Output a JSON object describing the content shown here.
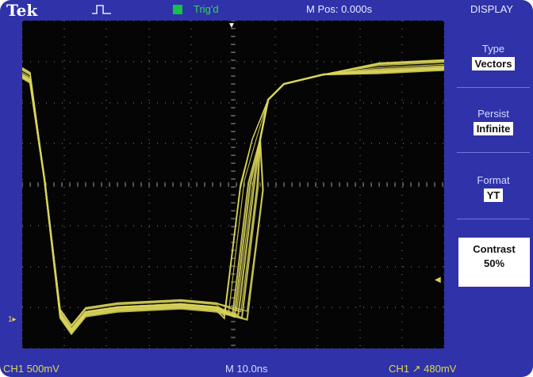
{
  "header": {
    "brand": "Tek",
    "trigger_status": "Trig'd",
    "m_pos": "M Pos: 0.000s"
  },
  "footer": {
    "ch1_scale": "CH1  500mV",
    "timebase": "M 10.0ns",
    "trigger": "CH1 ↗ 480mV"
  },
  "menu": {
    "title": "DISPLAY",
    "items": [
      {
        "label": "Type",
        "value": "Vectors"
      },
      {
        "label": "Persist",
        "value": "Infinite"
      },
      {
        "label": "Format",
        "value": "YT"
      },
      {
        "label": "Contrast",
        "value": "50%"
      }
    ]
  },
  "colors": {
    "bezel": "#2f32a8",
    "trace": "#d9d45a",
    "graticule": "#8a8a8a",
    "trigger_indicator": "#14c24a"
  },
  "icons": [
    "acquisition-pulse-icon",
    "trigger-position-marker-icon",
    "trigger-level-marker-icon",
    "ch1-ground-marker-icon"
  ]
}
